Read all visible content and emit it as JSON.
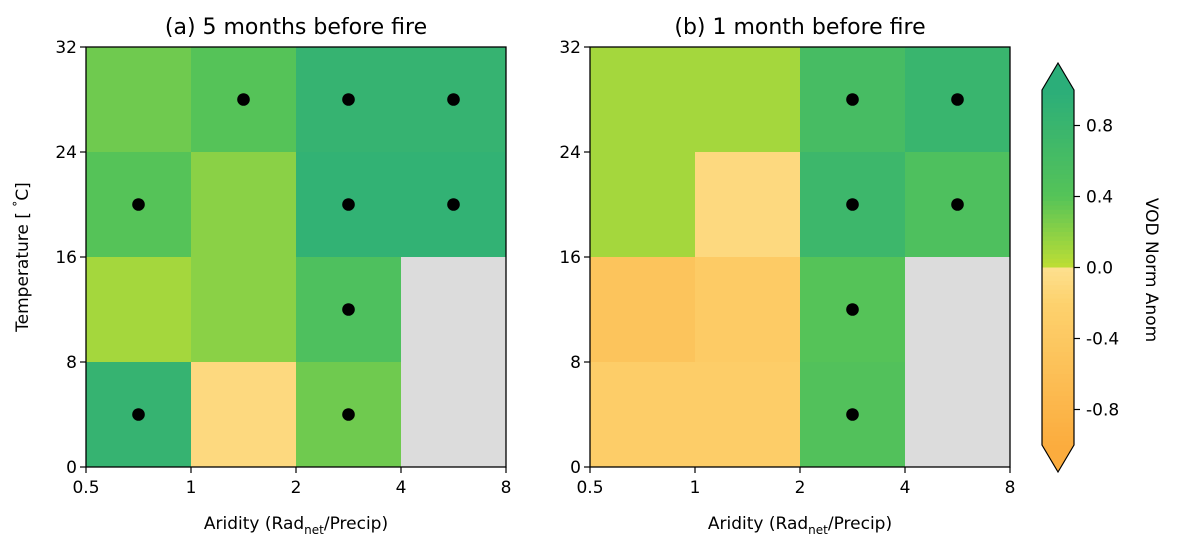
{
  "chart_data": [
    {
      "type": "heatmap",
      "title": "(a) 5 months before fire",
      "xlabel_prefix": "Aridity (Rad",
      "xlabel_sub": "net",
      "xlabel_suffix": "/Precip)",
      "ylabel": "Temperature [$^\\circ$C]",
      "ylabel_text": "Temperature [ ",
      "ylabel_degree": "°",
      "ylabel_unit": "C]",
      "x_bin_edges": [
        "0.5",
        "1",
        "2",
        "4",
        "8"
      ],
      "y_bin_edges": [
        "0",
        "8",
        "16",
        "24",
        "32"
      ],
      "rows_top_to_bottom": [
        {
          "temperature_bin": "24-32",
          "values": [
            0.3,
            0.4,
            0.85,
            0.85
          ],
          "significant": [
            false,
            true,
            true,
            true
          ]
        },
        {
          "temperature_bin": "16-24",
          "values": [
            0.4,
            0.2,
            0.9,
            0.9
          ],
          "significant": [
            true,
            false,
            true,
            true
          ]
        },
        {
          "temperature_bin": "8-16",
          "values": [
            0.1,
            0.2,
            0.5,
            null
          ],
          "significant": [
            false,
            false,
            true,
            false
          ]
        },
        {
          "temperature_bin": "0-8",
          "values": [
            0.85,
            -0.1,
            0.3,
            null
          ],
          "significant": [
            true,
            false,
            true,
            false
          ]
        }
      ]
    },
    {
      "type": "heatmap",
      "title": "(b) 1 month before fire",
      "xlabel_prefix": "Aridity (Rad",
      "xlabel_sub": "net",
      "xlabel_suffix": "/Precip)",
      "x_bin_edges": [
        "0.5",
        "1",
        "2",
        "4",
        "8"
      ],
      "y_bin_edges": [
        "0",
        "8",
        "16",
        "24",
        "32"
      ],
      "rows_top_to_bottom": [
        {
          "temperature_bin": "24-32",
          "values": [
            0.1,
            0.1,
            0.6,
            0.8
          ],
          "significant": [
            false,
            false,
            true,
            true
          ]
        },
        {
          "temperature_bin": "16-24",
          "values": [
            0.1,
            -0.1,
            0.75,
            0.5
          ],
          "significant": [
            false,
            false,
            true,
            true
          ]
        },
        {
          "temperature_bin": "8-16",
          "values": [
            -0.5,
            -0.35,
            0.4,
            null
          ],
          "significant": [
            false,
            false,
            true,
            false
          ]
        },
        {
          "temperature_bin": "0-8",
          "values": [
            -0.3,
            -0.3,
            0.45,
            null
          ],
          "significant": [
            false,
            false,
            true,
            false
          ]
        }
      ]
    }
  ],
  "colorbar": {
    "label": "VOD Norm Anom",
    "ticks": [
      "0.8",
      "0.4",
      "0.0",
      "-0.4",
      "-0.8"
    ],
    "tick_values": [
      0.8,
      0.4,
      0.0,
      -0.4,
      -0.8
    ],
    "range": [
      -1.0,
      1.0
    ],
    "extend": "both",
    "colors": {
      "neg_strong": "#fbac3e",
      "neg_weak": "#fde08f",
      "pos_weak": "#bbde33",
      "pos_mid": "#58c558",
      "pos_strong": "#2bae79",
      "no_data": "#dcdcdc"
    }
  }
}
